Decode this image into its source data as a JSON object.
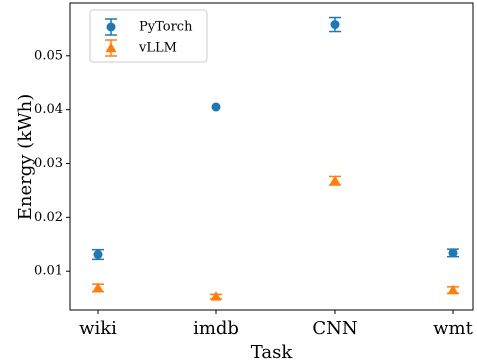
{
  "chart_data": {
    "type": "scatter",
    "title": "",
    "xlabel": "Task",
    "ylabel": "Energy (kWh)",
    "categories": [
      "wiki",
      "imdb",
      "CNN",
      "wmt"
    ],
    "ylim": [
      0.0028,
      0.0598
    ],
    "yticks": [
      0.01,
      0.02,
      0.03,
      0.04,
      0.05
    ],
    "ytick_labels": [
      "0.01",
      "0.02",
      "0.03",
      "0.04",
      "0.05"
    ],
    "grid": false,
    "legend_position": "top-left",
    "series": [
      {
        "name": "PyTorch",
        "marker": "circle",
        "color": "#1f77b4",
        "values": [
          0.0131,
          0.0405,
          0.0558,
          0.0134
        ],
        "errors": [
          0.0009,
          0.0,
          0.0013,
          0.0007
        ]
      },
      {
        "name": "vLLM",
        "marker": "triangle",
        "color": "#ff7f0e",
        "values": [
          0.0069,
          0.0053,
          0.0268,
          0.0065
        ],
        "errors": [
          0.0007,
          0.0004,
          0.0008,
          0.0006
        ]
      }
    ]
  }
}
